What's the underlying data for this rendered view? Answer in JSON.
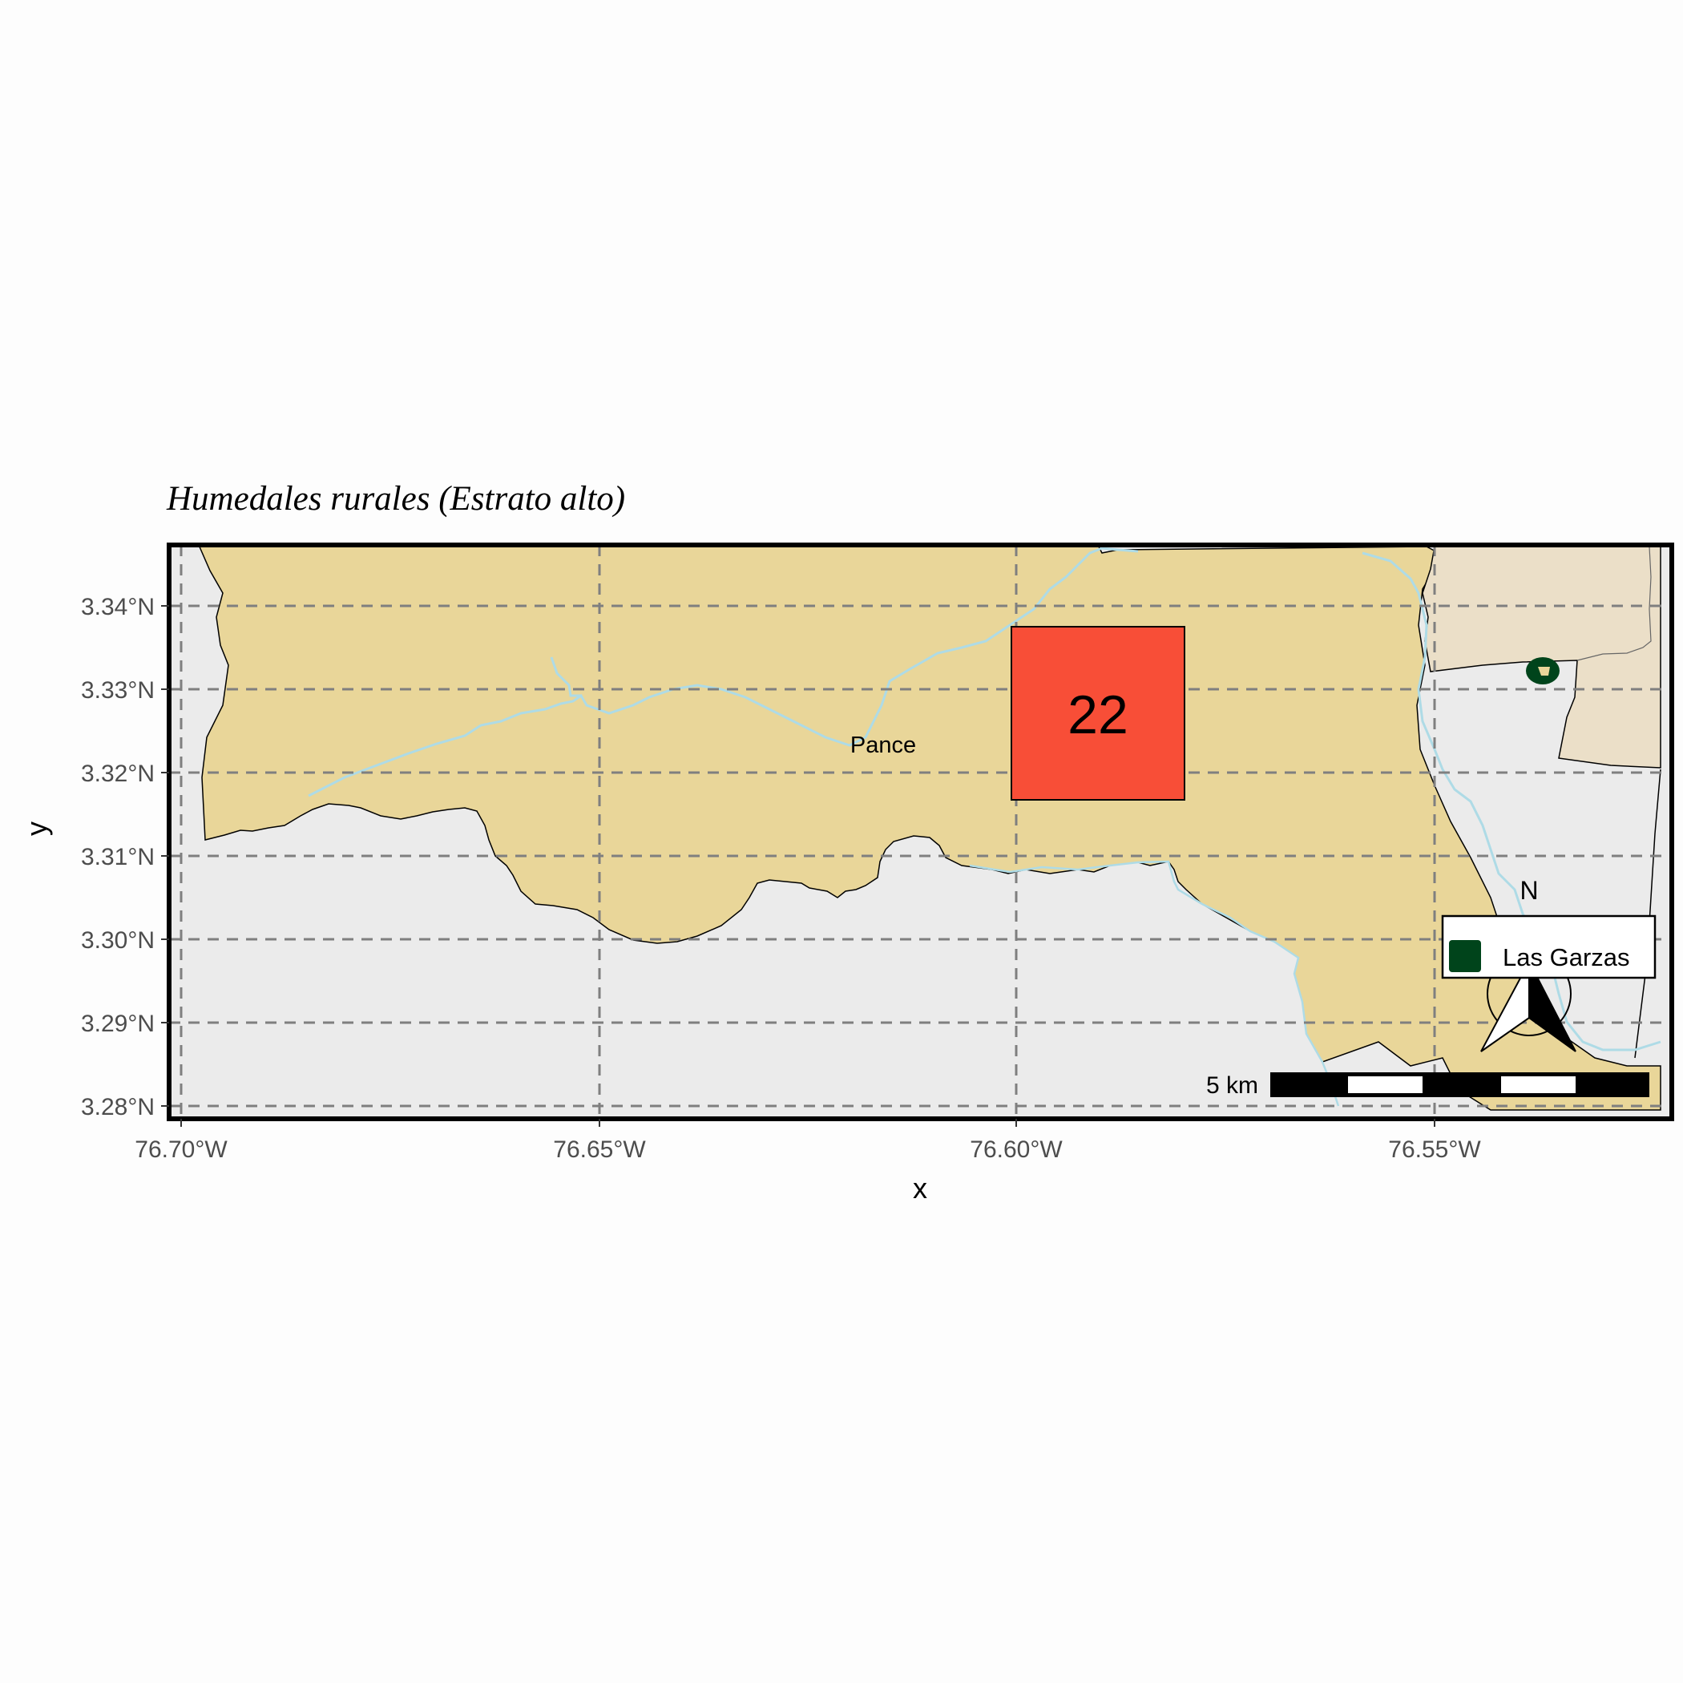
{
  "title": "Humedales rurales (Estrato alto)",
  "axes": {
    "x_title": "x",
    "y_title": "y",
    "x_ticks": [
      "76.70°W",
      "76.65°W",
      "76.60°W",
      "76.55°W"
    ],
    "y_ticks": [
      "3.34°N",
      "3.33°N",
      "3.32°N",
      "3.31°N",
      "3.30°N",
      "3.29°N",
      "3.28°N"
    ]
  },
  "place_label": "Pance",
  "highlight_cell": {
    "count": "22",
    "color": "#f84e37"
  },
  "legend": {
    "label": "Las Garzas",
    "color": "#00441b"
  },
  "scale_bar": {
    "label": "5 km"
  },
  "north_arrow": {
    "label": "N"
  },
  "colors": {
    "sea_background": "#ebebeb",
    "rural_land": "#e9d699",
    "urban_land": "#ebdfc8",
    "rivers": "#aedbe6",
    "gridlines": "#7f7f7f"
  }
}
